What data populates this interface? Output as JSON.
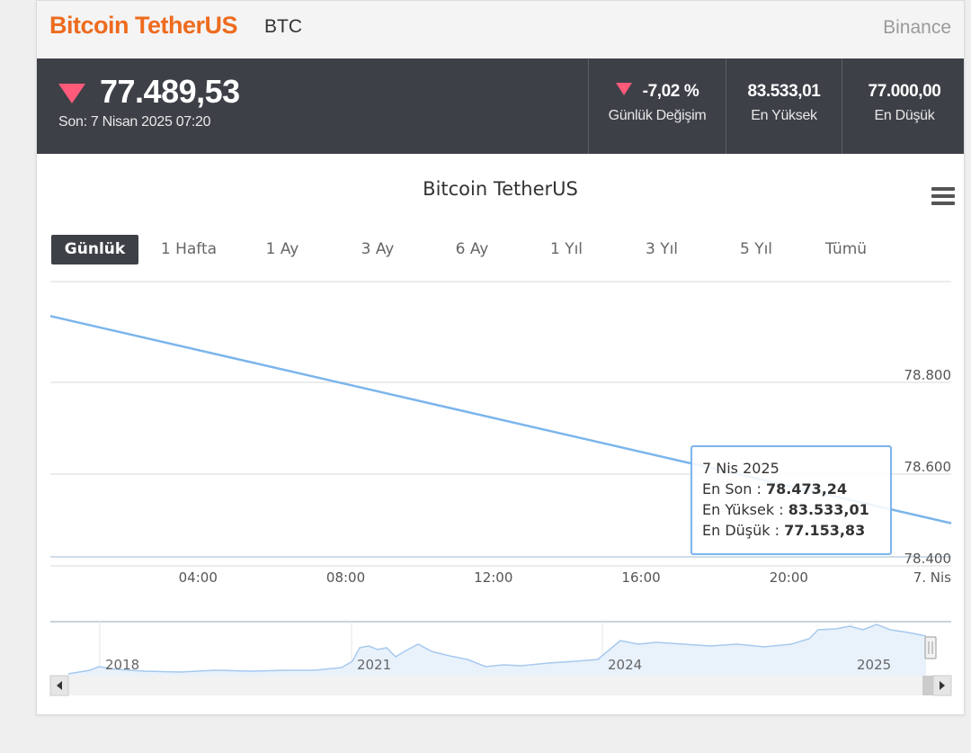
{
  "header": {
    "asset_name": "Bitcoin TetherUS",
    "asset_code": "BTC",
    "exchange": "Binance"
  },
  "quote": {
    "price": "77.489,53",
    "last_update": "Son: 7 Nisan 2025 07:20",
    "daily_change_value": "-7,02 %",
    "daily_change_label": "Günlük Değişim",
    "high_value": "83.533,01",
    "high_label": "En Yüksek",
    "low_value": "77.000,00",
    "low_label": "En Düşük",
    "trend": "down",
    "trend_color": "#ff5a7a"
  },
  "chart_title": "Bitcoin TetherUS",
  "menu_icon": "hamburger-menu-icon",
  "range_buttons": [
    "Günlük",
    "1 Hafta",
    "1 Ay",
    "3 Ay",
    "6 Ay",
    "1 Yıl",
    "3 Yıl",
    "5 Yıl",
    "Tümü"
  ],
  "active_range": "Günlük",
  "tooltip": {
    "date": "7 Nis 2025",
    "last_label": "En Son : ",
    "last_value": "78.473,24",
    "high_label": "En Yüksek : ",
    "high_value": "83.533,01",
    "low_label": "En Düşük : ",
    "low_value": "77.153,83"
  },
  "navigator": {
    "year_labels": [
      "2018",
      "2021",
      "2024",
      "2025"
    ],
    "scroll_left_icon": "arrow-left-icon",
    "scroll_right_icon": "arrow-right-icon"
  },
  "chart_data": {
    "type": "line",
    "title": "Bitcoin TetherUS",
    "line_color": "#7cb5ec",
    "x_ticks": [
      "04:00",
      "08:00",
      "12:00",
      "16:00",
      "20:00",
      "7. Nis"
    ],
    "y_ticks": [
      "78.800",
      "78.600",
      "78.400"
    ],
    "ylim": [
      78400,
      79000
    ],
    "series": [
      {
        "points": [
          {
            "x": 0,
            "y": 78925
          },
          {
            "x": 24.4,
            "y": 78473.24
          }
        ]
      }
    ],
    "grid": true
  }
}
